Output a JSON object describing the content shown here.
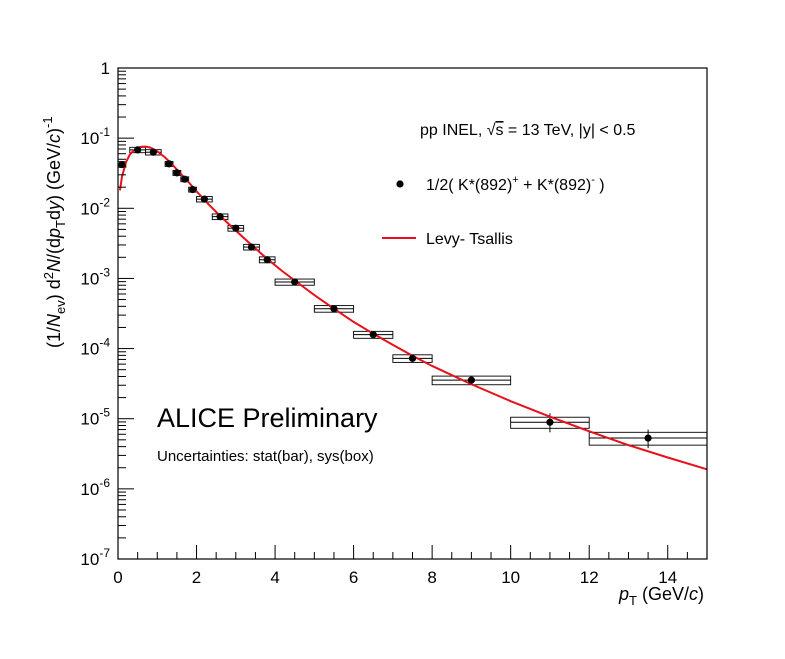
{
  "chart_data": {
    "type": "scatter",
    "title": "",
    "xlabel": "p_T (GeV/c)",
    "ylabel": "(1/N_ev) d²N/(dp_T dy) (GeV/c)⁻¹",
    "x_axis": {
      "label": "p",
      "sub": "T",
      "unit": " (GeV/",
      "unit_italic": "c",
      "unit_end": ")"
    },
    "y_axis": {
      "part1": "(1/",
      "n": "N",
      "ev": "ev",
      "part2": ") d",
      "sq": "2",
      "n2": "N",
      "part3": "/(d",
      "p": "p",
      "t": "T",
      "dy": "d",
      "y": "y",
      "part4": ") (GeV/",
      "c": "c",
      "part5": ")",
      "exp": "-1"
    },
    "xlim": [
      0,
      15
    ],
    "ylim": [
      1e-07,
      1
    ],
    "yscale": "log",
    "grid": false,
    "x_ticks": [
      "0",
      "2",
      "4",
      "6",
      "8",
      "10",
      "12",
      "14"
    ],
    "y_ticks": [
      {
        "base": "10",
        "exp": "-7",
        "value": 1e-07
      },
      {
        "base": "10",
        "exp": "-6",
        "value": 1e-06
      },
      {
        "base": "10",
        "exp": "-5",
        "value": 1e-05
      },
      {
        "base": "10",
        "exp": "-4",
        "value": 0.0001
      },
      {
        "base": "10",
        "exp": "-3",
        "value": 0.001
      },
      {
        "base": "10",
        "exp": "-2",
        "value": 0.01
      },
      {
        "base": "10",
        "exp": "-1",
        "value": 0.1
      },
      {
        "base": "1",
        "exp": "",
        "value": 1
      }
    ],
    "series": [
      {
        "name": "1/2( K*(892)⁺ + K*(892)⁻ )",
        "type": "scatter",
        "color": "#000000",
        "points": [
          {
            "x": 0.1,
            "y": 0.042,
            "xerr": 0.1,
            "yerr_low": 0.004,
            "yerr_high": 0.004,
            "sys_low": 0.0036,
            "sys_high": 0.0042
          },
          {
            "x": 0.5,
            "y": 0.068,
            "xerr": 0.2,
            "yerr_low": 0.004,
            "yerr_high": 0.004,
            "sys_low": 0.006,
            "sys_high": 0.006
          },
          {
            "x": 0.9,
            "y": 0.063,
            "xerr": 0.2,
            "yerr_low": 0.002,
            "yerr_high": 0.002,
            "sys_low": 0.0055,
            "sys_high": 0.0055
          },
          {
            "x": 1.3,
            "y": 0.043,
            "xerr": 0.1,
            "yerr_low": 0.0015,
            "yerr_high": 0.0015,
            "sys_low": 0.0035,
            "sys_high": 0.0035
          },
          {
            "x": 1.5,
            "y": 0.032,
            "xerr": 0.1,
            "yerr_low": 0.001,
            "yerr_high": 0.001,
            "sys_low": 0.0026,
            "sys_high": 0.0026
          },
          {
            "x": 1.7,
            "y": 0.026,
            "xerr": 0.1,
            "yerr_low": 0.0008,
            "yerr_high": 0.0008,
            "sys_low": 0.0021,
            "sys_high": 0.0021
          },
          {
            "x": 1.9,
            "y": 0.0185,
            "xerr": 0.1,
            "yerr_low": 0.0006,
            "yerr_high": 0.0006,
            "sys_low": 0.0015,
            "sys_high": 0.0015
          },
          {
            "x": 2.2,
            "y": 0.0135,
            "xerr": 0.2,
            "yerr_low": 0.0004,
            "yerr_high": 0.0004,
            "sys_low": 0.0012,
            "sys_high": 0.0012
          },
          {
            "x": 2.6,
            "y": 0.0076,
            "xerr": 0.2,
            "yerr_low": 0.0002,
            "yerr_high": 0.0002,
            "sys_low": 0.0007,
            "sys_high": 0.0007
          },
          {
            "x": 3.0,
            "y": 0.0052,
            "xerr": 0.2,
            "yerr_low": 0.00015,
            "yerr_high": 0.00015,
            "sys_low": 0.00048,
            "sys_high": 0.00048
          },
          {
            "x": 3.4,
            "y": 0.0028,
            "xerr": 0.2,
            "yerr_low": 0.0001,
            "yerr_high": 0.0001,
            "sys_low": 0.00026,
            "sys_high": 0.00026
          },
          {
            "x": 3.8,
            "y": 0.00185,
            "xerr": 0.2,
            "yerr_low": 6e-05,
            "yerr_high": 6e-05,
            "sys_low": 0.00018,
            "sys_high": 0.00018
          },
          {
            "x": 4.5,
            "y": 0.00089,
            "xerr": 0.5,
            "yerr_low": 3e-05,
            "yerr_high": 3e-05,
            "sys_low": 9e-05,
            "sys_high": 9e-05
          },
          {
            "x": 5.5,
            "y": 0.00037,
            "xerr": 0.5,
            "yerr_low": 1.5e-05,
            "yerr_high": 1.5e-05,
            "sys_low": 4e-05,
            "sys_high": 4e-05
          },
          {
            "x": 6.5,
            "y": 0.000158,
            "xerr": 0.5,
            "yerr_low": 8e-06,
            "yerr_high": 8e-06,
            "sys_low": 1.8e-05,
            "sys_high": 1.8e-05
          },
          {
            "x": 7.5,
            "y": 7.25e-05,
            "xerr": 0.5,
            "yerr_low": 6e-06,
            "yerr_high": 6e-06,
            "sys_low": 9e-06,
            "sys_high": 9e-06
          },
          {
            "x": 9.0,
            "y": 3.55e-05,
            "xerr": 1.0,
            "yerr_low": 3e-06,
            "yerr_high": 3e-06,
            "sys_low": 5e-06,
            "sys_high": 5e-06
          },
          {
            "x": 11.0,
            "y": 8.9e-06,
            "xerr": 1.0,
            "yerr_low": 2.5e-06,
            "yerr_high": 3e-06,
            "sys_low": 1.6e-06,
            "sys_high": 1.6e-06
          },
          {
            "x": 13.5,
            "y": 5.3e-06,
            "xerr": 1.5,
            "yerr_low": 1.5e-06,
            "yerr_high": 1.7e-06,
            "sys_low": 1.1e-06,
            "sys_high": 1.1e-06
          }
        ]
      },
      {
        "name": "Levy- Tsallis",
        "type": "line",
        "color": "#e8101a",
        "x": [
          0.05,
          0.1,
          0.2,
          0.3,
          0.4,
          0.5,
          0.6,
          0.7,
          0.8,
          0.9,
          1.0,
          1.2,
          1.4,
          1.6,
          1.8,
          2.0,
          2.3,
          2.6,
          3.0,
          3.4,
          3.8,
          4.2,
          4.6,
          5.0,
          5.5,
          6.0,
          6.5,
          7.0,
          7.5,
          8.0,
          9.0,
          10.0,
          11.0,
          12.0,
          13.0,
          14.0,
          15.0
        ],
        "y": [
          0.018,
          0.028,
          0.045,
          0.058,
          0.067,
          0.073,
          0.0755,
          0.0758,
          0.074,
          0.07,
          0.065,
          0.053,
          0.041,
          0.031,
          0.0235,
          0.0175,
          0.0115,
          0.0078,
          0.0048,
          0.003,
          0.0019,
          0.00125,
          0.00085,
          0.00058,
          0.00037,
          0.00024,
          0.000163,
          0.000113,
          7.9e-05,
          5.65e-05,
          3.1e-05,
          1.78e-05,
          1.07e-05,
          6.6e-06,
          4.2e-06,
          2.8e-06,
          1.9e-06
        ]
      }
    ],
    "annotations": {
      "system_text": {
        "pre": "pp INEL, ",
        "sqrt": "√",
        "s": "s",
        "post": " = 13 TeV, |y| < 0.5"
      },
      "legend_marker_text": {
        "pre": "1/2( K*(892)",
        "sup1": "+",
        "mid": " + K*(892)",
        "sup2": "-",
        "post": " )"
      },
      "legend_line_text": "Levy- Tsallis",
      "alice": "ALICE Preliminary",
      "uncertainties": "Uncertainties: stat(bar), sys(box)"
    },
    "legend_position": "top-right"
  }
}
